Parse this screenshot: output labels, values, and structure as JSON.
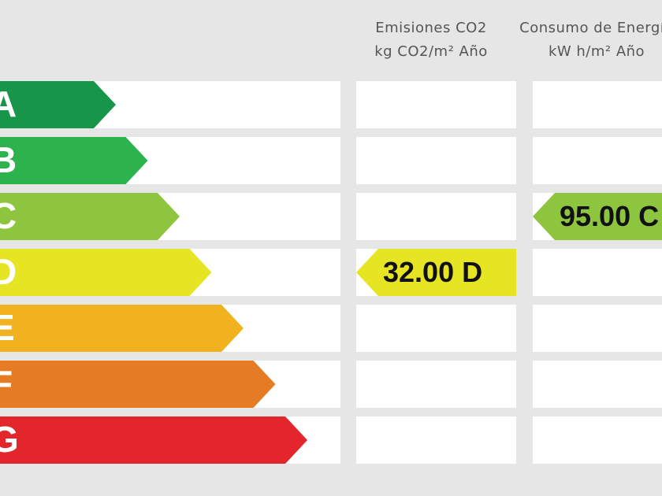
{
  "headers": [
    {
      "title": "Emisiones CO2",
      "unit": "kg CO2/m² Año"
    },
    {
      "title": "Consumo de Energía",
      "unit": "kW h/m² Año"
    }
  ],
  "ratings": [
    {
      "letter": "A",
      "color": "#17964a"
    },
    {
      "letter": "B",
      "color": "#2db34e"
    },
    {
      "letter": "C",
      "color": "#8dc53e"
    },
    {
      "letter": "D",
      "color": "#e6e524"
    },
    {
      "letter": "E",
      "color": "#f0b21f"
    },
    {
      "letter": "F",
      "color": "#e57c24"
    },
    {
      "letter": "G",
      "color": "#e2262b"
    }
  ],
  "indicators": [
    {
      "value": "32.00",
      "rating": "D"
    },
    {
      "value": "95.00",
      "rating": "C"
    }
  ]
}
